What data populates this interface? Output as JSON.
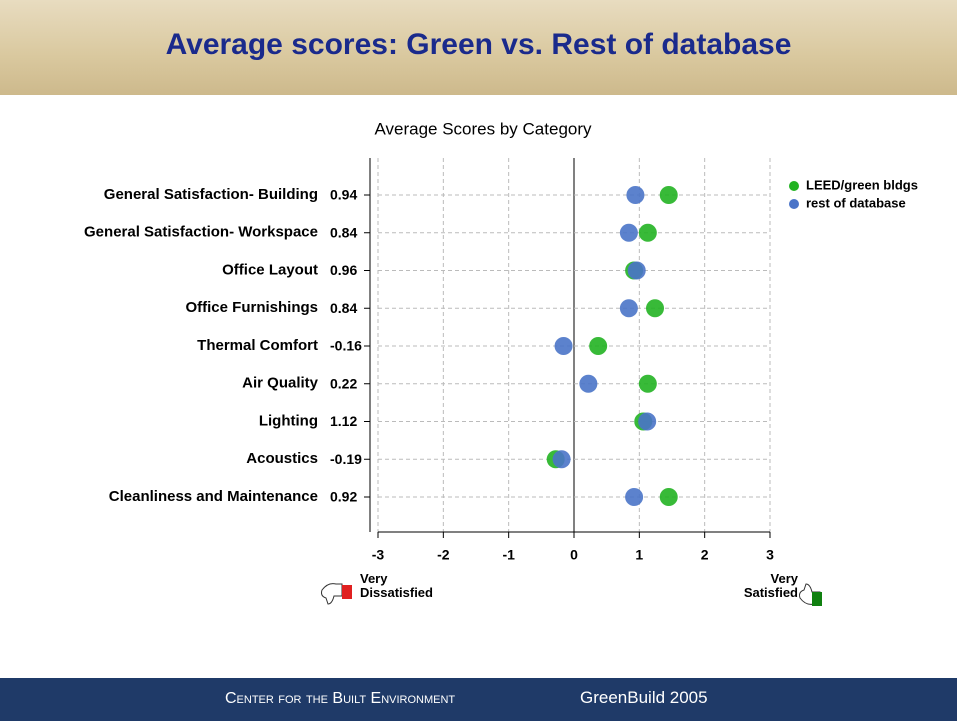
{
  "title": "Average scores: Green vs. Rest of database",
  "chart_data": {
    "type": "dot",
    "title": "Average Scores by Category",
    "categories": [
      "General Satisfaction- Building",
      "General Satisfaction- Workspace",
      "Office Layout",
      "Office Furnishings",
      "Thermal Comfort",
      "Air Quality",
      "Lighting",
      "Acoustics",
      "Cleanliness and Maintenance"
    ],
    "series": [
      {
        "name": "LEED/green bldgs",
        "color": "#22b322",
        "values": [
          1.45,
          1.13,
          0.92,
          1.24,
          0.37,
          1.13,
          1.06,
          -0.28,
          1.45
        ]
      },
      {
        "name": "rest of database",
        "color": "#4a74c8",
        "values": [
          0.94,
          0.84,
          0.96,
          0.84,
          -0.16,
          0.22,
          1.12,
          -0.19,
          0.92
        ]
      }
    ],
    "xlim": [
      -3,
      3
    ],
    "xticks": [
      -3,
      -2,
      -1,
      0,
      1,
      2,
      3
    ],
    "grid": true,
    "annotations": [
      "Very\nDissatisfied",
      "Very\nSatisfied"
    ]
  },
  "footer": {
    "organization": "Center for the Built Environment",
    "event": "GreenBuild 2005"
  }
}
